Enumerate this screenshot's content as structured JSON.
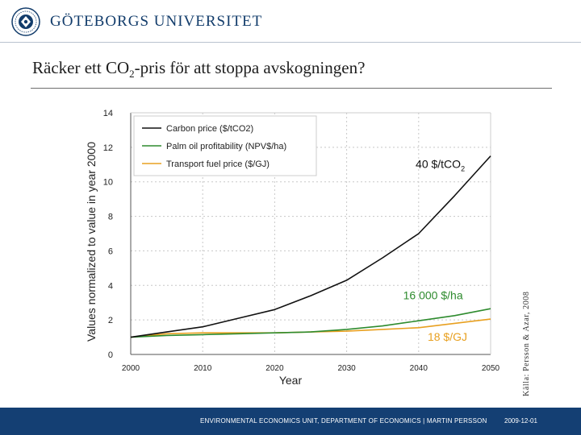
{
  "header": {
    "org_name": "GÖTEBORGS UNIVERSITET",
    "logo_icon": "university-seal-icon"
  },
  "slide": {
    "title_pre": "Räcker ett CO",
    "title_sub": "2",
    "title_post": "-pris för att stoppa avskogningen?"
  },
  "source_note": "Källa: Persson & Azar, 2008",
  "footer": {
    "text": "ENVIRONMENTAL ECONOMICS UNIT, DEPARTMENT OF ECONOMICS  |  MARTIN PERSSON",
    "date": "2009-12-01"
  },
  "colors": {
    "carbon": "#111111",
    "palm": "#2e8b2e",
    "transport": "#e8a020",
    "footer_bg": "#143f73",
    "brand": "#123c6b"
  },
  "chart_data": {
    "type": "line",
    "title": "",
    "xlabel": "Year",
    "ylabel": "Values normalized to value in year 2000",
    "xlim": [
      2000,
      2050
    ],
    "ylim": [
      0,
      14
    ],
    "x_ticks": [
      2000,
      2010,
      2020,
      2030,
      2040,
      2050
    ],
    "y_ticks": [
      0,
      2,
      4,
      6,
      8,
      10,
      12,
      14
    ],
    "grid": true,
    "legend_position": "top-left",
    "x": [
      2000,
      2005,
      2010,
      2015,
      2020,
      2025,
      2030,
      2035,
      2040,
      2045,
      2050
    ],
    "series": [
      {
        "name": "Carbon price ($/tCO2)",
        "color": "#111111",
        "values": [
          1.0,
          1.3,
          1.6,
          2.1,
          2.6,
          3.4,
          4.3,
          5.6,
          7.0,
          9.2,
          11.5
        ]
      },
      {
        "name": "Palm oil profitability (NPV$/ha)",
        "color": "#2e8b2e",
        "values": [
          1.0,
          1.1,
          1.15,
          1.2,
          1.25,
          1.3,
          1.45,
          1.65,
          1.95,
          2.25,
          2.65
        ]
      },
      {
        "name": "Transport fuel price ($/GJ)",
        "color": "#e8a020",
        "values": [
          1.0,
          1.2,
          1.25,
          1.25,
          1.25,
          1.3,
          1.35,
          1.45,
          1.55,
          1.8,
          2.05
        ]
      }
    ],
    "annotations": [
      {
        "text_main": "40 $/tCO",
        "text_sub": "2",
        "x": 2043,
        "y": 10.8,
        "color": "#111111"
      },
      {
        "text_main": "16 000 $/ha",
        "x": 2042,
        "y": 3.2,
        "color": "#2e8b2e"
      },
      {
        "text_main": "18 $/GJ",
        "x": 2044,
        "y": 0.8,
        "color": "#e8a020"
      }
    ]
  }
}
